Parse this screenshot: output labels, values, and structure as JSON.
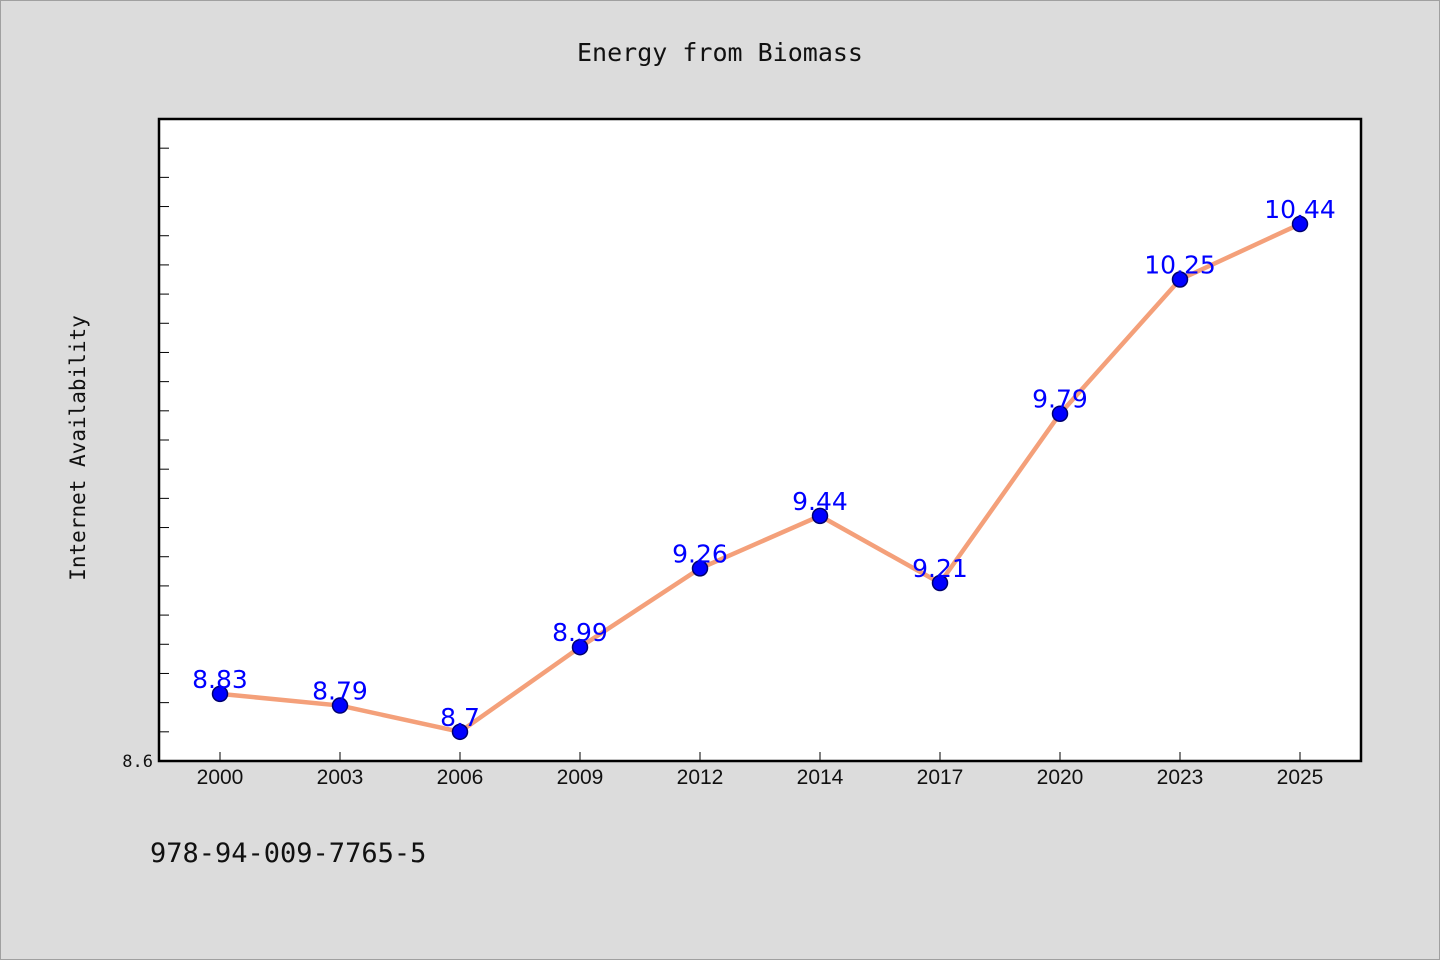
{
  "chart_data": {
    "type": "line",
    "title": "Energy from Biomass",
    "xlabel": "",
    "ylabel": "Internet Availability",
    "categories": [
      "2000",
      "2003",
      "2006",
      "2009",
      "2012",
      "2014",
      "2017",
      "2020",
      "2023",
      "2025"
    ],
    "series": [
      {
        "values": [
          8.83,
          8.79,
          8.7,
          8.99,
          9.26,
          9.44,
          9.21,
          9.79,
          10.25,
          10.44
        ]
      }
    ],
    "data_labels": [
      "8.83",
      "8.79",
      "8.7",
      "8.99",
      "9.26",
      "9.44",
      "9.21",
      "9.79",
      "10.25",
      "10.44"
    ],
    "ylim": [
      8.6,
      10.8
    ],
    "y_tick_labels": [
      "8.6"
    ],
    "y_minor_tick_step": 0.1,
    "grid": false,
    "legend": "none"
  },
  "footer": {
    "isbn": "978-94-009-7765-5"
  },
  "colors": {
    "figure_background": "#dcdcdc",
    "plot_background": "#ffffff",
    "line": "#f4a07a",
    "marker_fill": "#0000ff",
    "marker_edge": "#00006e",
    "data_label": "#0000ff",
    "axis": "#000000"
  }
}
